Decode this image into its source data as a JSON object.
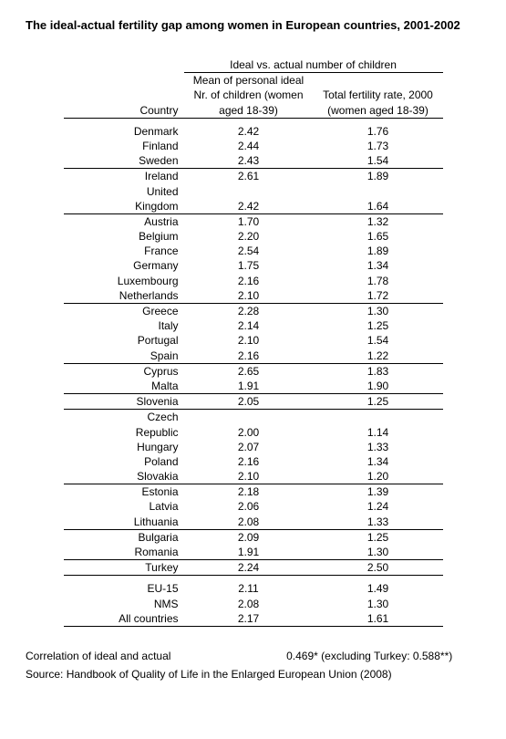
{
  "title": "The ideal-actual fertility gap among women in European countries, 2001-2002",
  "headers": {
    "spanning": "Ideal vs. actual number of children",
    "country": "Country",
    "ideal": "Mean of personal ideal Nr. of children (women aged 18-39)",
    "tfr": "Total fertility rate, 2000 (women aged 18-39)"
  },
  "groups": [
    {
      "rows": [
        {
          "country": "Denmark",
          "ideal": "2.42",
          "tfr": "1.76"
        },
        {
          "country": "Finland",
          "ideal": "2.44",
          "tfr": "1.73"
        },
        {
          "country": "Sweden",
          "ideal": "2.43",
          "tfr": "1.54"
        }
      ]
    },
    {
      "rows": [
        {
          "country": "Ireland",
          "ideal": "2.61",
          "tfr": "1.89"
        },
        {
          "country": "United Kingdom",
          "ideal": "2.42",
          "tfr": "1.64"
        }
      ]
    },
    {
      "rows": [
        {
          "country": "Austria",
          "ideal": "1.70",
          "tfr": "1.32"
        },
        {
          "country": "Belgium",
          "ideal": "2.20",
          "tfr": "1.65"
        },
        {
          "country": "France",
          "ideal": "2.54",
          "tfr": "1.89"
        },
        {
          "country": "Germany",
          "ideal": "1.75",
          "tfr": "1.34"
        },
        {
          "country": "Luxembourg",
          "ideal": "2.16",
          "tfr": "1.78"
        },
        {
          "country": "Netherlands",
          "ideal": "2.10",
          "tfr": "1.72"
        }
      ]
    },
    {
      "rows": [
        {
          "country": "Greece",
          "ideal": "2.28",
          "tfr": "1.30"
        },
        {
          "country": "Italy",
          "ideal": "2.14",
          "tfr": "1.25"
        },
        {
          "country": "Portugal",
          "ideal": "2.10",
          "tfr": "1.54"
        },
        {
          "country": "Spain",
          "ideal": "2.16",
          "tfr": "1.22"
        }
      ]
    },
    {
      "rows": [
        {
          "country": "Cyprus",
          "ideal": "2.65",
          "tfr": "1.83"
        },
        {
          "country": "Malta",
          "ideal": "1.91",
          "tfr": "1.90"
        }
      ]
    },
    {
      "rows": [
        {
          "country": "Slovenia",
          "ideal": "2.05",
          "tfr": "1.25"
        }
      ]
    },
    {
      "rows": [
        {
          "country": "Czech Republic",
          "ideal": "2.00",
          "tfr": "1.14"
        },
        {
          "country": "Hungary",
          "ideal": "2.07",
          "tfr": "1.33"
        },
        {
          "country": "Poland",
          "ideal": "2.16",
          "tfr": "1.34"
        },
        {
          "country": "Slovakia",
          "ideal": "2.10",
          "tfr": "1.20"
        }
      ]
    },
    {
      "rows": [
        {
          "country": "Estonia",
          "ideal": "2.18",
          "tfr": "1.39"
        },
        {
          "country": "Latvia",
          "ideal": "2.06",
          "tfr": "1.24"
        },
        {
          "country": "Lithuania",
          "ideal": "2.08",
          "tfr": "1.33"
        }
      ]
    },
    {
      "rows": [
        {
          "country": "Bulgaria",
          "ideal": "2.09",
          "tfr": "1.25"
        },
        {
          "country": "Romania",
          "ideal": "1.91",
          "tfr": "1.30"
        }
      ]
    },
    {
      "rows": [
        {
          "country": "Turkey",
          "ideal": "2.24",
          "tfr": "2.50"
        }
      ]
    }
  ],
  "summary": [
    {
      "country": "EU-15",
      "ideal": "2.11",
      "tfr": "1.49"
    },
    {
      "country": "NMS",
      "ideal": "2.08",
      "tfr": "1.30"
    },
    {
      "country": "All countries",
      "ideal": "2.17",
      "tfr": "1.61"
    }
  ],
  "footer": {
    "correlation_label": "Correlation of ideal and actual",
    "correlation_value": "0.469* (excluding Turkey: 0.588**)",
    "source": "Source: Handbook of Quality of Life in the Enlarged European Union (2008)"
  }
}
